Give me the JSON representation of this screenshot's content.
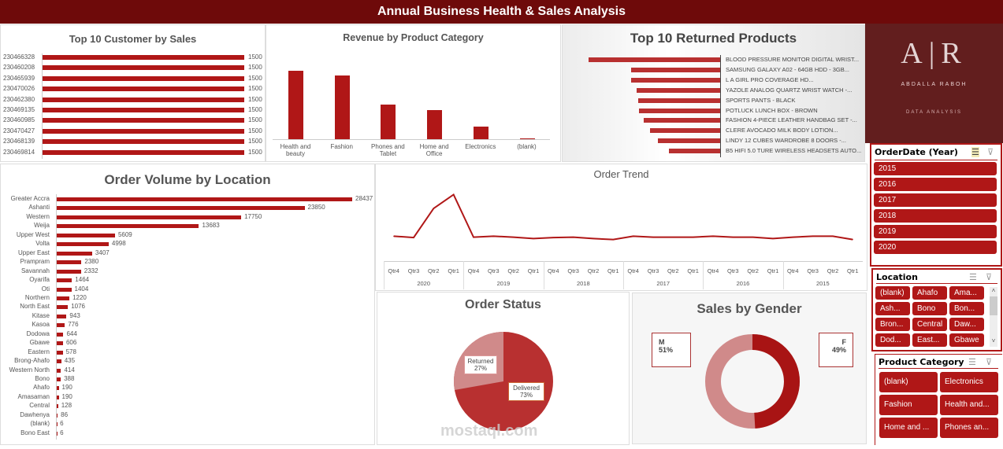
{
  "header": {
    "title": "Annual Business Health & Sales Analysis"
  },
  "logo": {
    "text": "ABDALLA RABOH",
    "subtitle": "DATA ANALYSIS",
    "monogram": "AR"
  },
  "colors": {
    "accent": "#b01717",
    "header": "#6e0a0a",
    "logo_bg": "#621e1e"
  },
  "chart_data": [
    {
      "type": "bar",
      "orientation": "horizontal",
      "title": "Top 10 Customer by Sales",
      "categories": [
        "230466328",
        "230460208",
        "230465939",
        "230470026",
        "230462380",
        "230469135",
        "230460985",
        "230470427",
        "230468139",
        "230469814"
      ],
      "values": [
        1500,
        1500,
        1500,
        1500,
        1500,
        1500,
        1500,
        1500,
        1500,
        1500
      ]
    },
    {
      "type": "bar",
      "title": "Revenue by Product Category",
      "categories": [
        "Health and beauty",
        "Fashion",
        "Phones and Tablet",
        "Home and Office",
        "Electronics",
        "(blank)"
      ],
      "values": [
        87,
        81,
        44,
        37,
        16,
        1
      ]
    },
    {
      "type": "bar",
      "orientation": "horizontal",
      "title": "Top 10 Returned Products",
      "categories": [
        "BLOOD PRESSURE MONITOR DIGITAL WRIST...",
        "SAMSUNG GALAXY A02 - 64GB HDD - 3GB...",
        "L A GIRL PRO COVERAGE HD...",
        "YAZOLE ANALOG QUARTZ WRIST WATCH -...",
        "SPORTS PANTS - BLACK",
        "POTLUCK LUNCH BOX - BROWN",
        "FASHION 4-PIECE LEATHER HANDBAG SET -...",
        "CLERE AVOCADO MILK BODY LOTION...",
        "LINDY 12 CUBES WARDROBE 8 DOORS -...",
        "B5 HIFI 5.0 TURE WIRELESS HEADSETS AUTO..."
      ],
      "values": [
        167,
        113,
        113,
        106,
        104,
        103,
        97,
        89,
        79,
        65
      ]
    },
    {
      "type": "bar",
      "orientation": "horizontal",
      "title": "Order Volume by Location",
      "categories": [
        "Greater Accra",
        "Ashanti",
        "Western",
        "Weija",
        "Upper West",
        "Volta",
        "Upper East",
        "Prampram",
        "Savannah",
        "Oyarifa",
        "Oti",
        "Northern",
        "North East",
        "Kitase",
        "Kasoa",
        "Dodowa",
        "Gbawe",
        "Eastern",
        "Brong-Ahafo",
        "Western North",
        "Bono",
        "Ahafo",
        "Amasaman",
        "Central",
        "Dawhenya",
        "(blank)",
        "Bono East"
      ],
      "values": [
        28437,
        23850,
        17750,
        13683,
        5609,
        4998,
        3407,
        2380,
        2332,
        1464,
        1404,
        1220,
        1076,
        943,
        776,
        644,
        606,
        578,
        435,
        414,
        388,
        190,
        190,
        128,
        86,
        6,
        6
      ]
    },
    {
      "type": "line",
      "title": "Order Trend",
      "quarters": [
        "Qtr4",
        "Qtr3",
        "Qtr2",
        "Qtr1"
      ],
      "years": [
        "2020",
        "2019",
        "2018",
        "2017",
        "2016",
        "2015"
      ],
      "values": [
        55,
        51,
        137,
        178,
        52,
        55,
        52,
        48,
        51,
        52,
        48,
        45,
        55,
        52,
        52,
        52,
        55,
        52,
        52,
        48,
        52,
        55,
        55,
        45
      ]
    },
    {
      "type": "pie",
      "title": "Order Status",
      "labels": [
        "Delivered",
        "Returned"
      ],
      "values": [
        73,
        27
      ],
      "display": [
        "73%",
        "27%"
      ]
    },
    {
      "type": "pie",
      "subtype": "donut",
      "title": "Sales by Gender",
      "labels": [
        "F",
        "M"
      ],
      "values": [
        49,
        51
      ],
      "display": [
        "49%",
        "51%"
      ]
    }
  ],
  "slicers": {
    "year": {
      "title": "OrderDate (Year)",
      "items": [
        "2015",
        "2016",
        "2017",
        "2018",
        "2019",
        "2020"
      ]
    },
    "location": {
      "title": "Location",
      "items": [
        "(blank)",
        "Ahafo",
        "Ama...",
        "Ash...",
        "Bono",
        "Bon...",
        "Bron...",
        "Central",
        "Daw...",
        "Dod...",
        "East...",
        "Gbawe"
      ]
    },
    "category": {
      "title": "Product Category",
      "items": [
        "(blank)",
        "Electronics",
        "Fashion",
        "Health and...",
        "Home and ...",
        "Phones an..."
      ]
    }
  },
  "watermark": {
    "text": "mostaql.com"
  }
}
